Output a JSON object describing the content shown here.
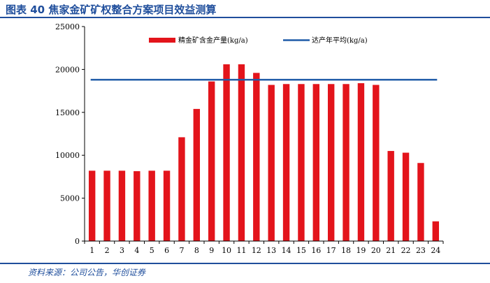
{
  "figure": {
    "title": "图表 40  焦家金矿矿权整合方案项目效益测算",
    "source": "资料来源：公司公告，华创证券"
  },
  "colors": {
    "bar": "#e3141b",
    "line": "#1f5ba8",
    "accent": "#1f4e9c"
  },
  "chart_data": {
    "type": "bar",
    "title": "",
    "xlabel": "",
    "ylabel": "",
    "ylim": [
      0,
      25000
    ],
    "yticks": [
      0,
      5000,
      10000,
      15000,
      20000,
      25000
    ],
    "grid": false,
    "legend_position": "top",
    "categories": [
      "1",
      "2",
      "3",
      "4",
      "5",
      "6",
      "7",
      "8",
      "9",
      "10",
      "11",
      "12",
      "13",
      "14",
      "15",
      "16",
      "17",
      "18",
      "19",
      "20",
      "21",
      "22",
      "23",
      "24"
    ],
    "series": [
      {
        "name": "精金矿含金产量(kg/a)",
        "type": "bar",
        "values": [
          8200,
          8200,
          8200,
          8150,
          8200,
          8200,
          12100,
          15400,
          18600,
          20600,
          20600,
          19600,
          18200,
          18300,
          18300,
          18300,
          18300,
          18300,
          18400,
          18200,
          10500,
          10300,
          9100,
          2300
        ]
      },
      {
        "name": "达产年平均(kg/a)",
        "type": "line",
        "value": 18800
      }
    ]
  }
}
